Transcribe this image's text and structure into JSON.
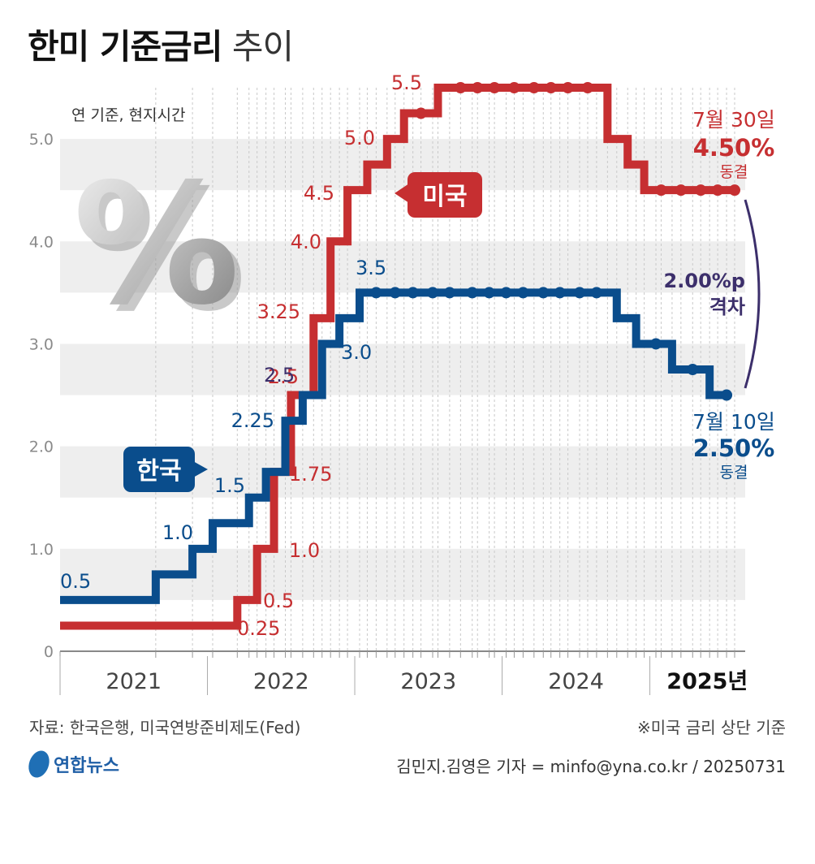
{
  "title": {
    "main": "한미 기준금리",
    "sub": "추이"
  },
  "subtitle": "연 기준, 현지시간",
  "colors": {
    "us": "#c62f31",
    "kr": "#0a4d8c",
    "gap": "#3c2f6b",
    "band": "#eeeeee",
    "grid": "#c9c9c9"
  },
  "chart_data": {
    "type": "line",
    "step": true,
    "ylim": [
      0,
      5.5
    ],
    "yticks": [
      "0",
      "1.0",
      "2.0",
      "3.0",
      "4.0",
      "5.0"
    ],
    "years": [
      "2021",
      "2022",
      "2023",
      "2024",
      "2025년"
    ],
    "series": [
      {
        "name": "미국",
        "values": [
          [
            "2021-01-01",
            0.25
          ],
          [
            "2022-03-16",
            0.5
          ],
          [
            "2022-05-04",
            1.0
          ],
          [
            "2022-06-15",
            1.75
          ],
          [
            "2022-07-27",
            2.5
          ],
          [
            "2022-09-21",
            3.25
          ],
          [
            "2022-11-02",
            4.0
          ],
          [
            "2022-12-14",
            4.5
          ],
          [
            "2023-02-01",
            4.75
          ],
          [
            "2023-03-22",
            5.0
          ],
          [
            "2023-05-03",
            5.25
          ],
          [
            "2023-07-26",
            5.5
          ],
          [
            "2024-09-18",
            5.0
          ],
          [
            "2024-11-07",
            4.75
          ],
          [
            "2024-12-18",
            4.5
          ],
          [
            "2025-07-30",
            4.5
          ]
        ],
        "holds": [
          "2023-06-14",
          "2023-09-20",
          "2023-11-01",
          "2023-12-13",
          "2024-01-31",
          "2024-03-20",
          "2024-05-01",
          "2024-06-12",
          "2024-07-31",
          "2025-01-29",
          "2025-03-19",
          "2025-05-07",
          "2025-06-18",
          "2025-07-30"
        ],
        "labels": [
          "0.25",
          "0.5",
          "1.0",
          "1.75",
          "2.5",
          "3.25",
          "4.0",
          "4.5",
          "5.0",
          "5.5"
        ]
      },
      {
        "name": "한국",
        "values": [
          [
            "2021-01-01",
            0.5
          ],
          [
            "2021-08-26",
            0.75
          ],
          [
            "2021-11-25",
            1.0
          ],
          [
            "2022-01-14",
            1.25
          ],
          [
            "2022-04-14",
            1.5
          ],
          [
            "2022-05-26",
            1.75
          ],
          [
            "2022-07-13",
            2.25
          ],
          [
            "2022-08-25",
            2.5
          ],
          [
            "2022-10-12",
            3.0
          ],
          [
            "2022-11-24",
            3.25
          ],
          [
            "2023-01-13",
            3.5
          ],
          [
            "2024-10-11",
            3.25
          ],
          [
            "2024-11-28",
            3.0
          ],
          [
            "2025-02-25",
            2.75
          ],
          [
            "2025-05-29",
            2.5
          ],
          [
            "2025-07-10",
            2.5
          ]
        ],
        "holds": [
          "2023-02-23",
          "2023-04-11",
          "2023-05-25",
          "2023-07-13",
          "2023-08-24",
          "2023-10-19",
          "2023-11-30",
          "2024-01-11",
          "2024-02-22",
          "2024-04-12",
          "2024-05-23",
          "2024-07-11",
          "2024-08-22",
          "2025-01-16",
          "2025-04-17",
          "2025-07-10"
        ],
        "labels": [
          "0.5",
          "1.0",
          "1.5",
          "2.25",
          "2.5",
          "3.0",
          "3.5"
        ]
      }
    ]
  },
  "callouts": {
    "us_tag": "미국",
    "kr_tag": "한국",
    "us_date": "7월 30일",
    "us_rate": "4.50%",
    "us_status": "동결",
    "kr_date": "7월 10일",
    "kr_rate": "2.50%",
    "kr_status": "동결",
    "gap_value": "2.00%p",
    "gap_label": "격차"
  },
  "footer": {
    "source": "자료: 한국은행, 미국연방준비제도(Fed)",
    "note": "※미국 금리 상단 기준",
    "credit": "김민지.김영은 기자 = minfo@yna.co.kr / 20250731",
    "logo": "연합뉴스"
  }
}
